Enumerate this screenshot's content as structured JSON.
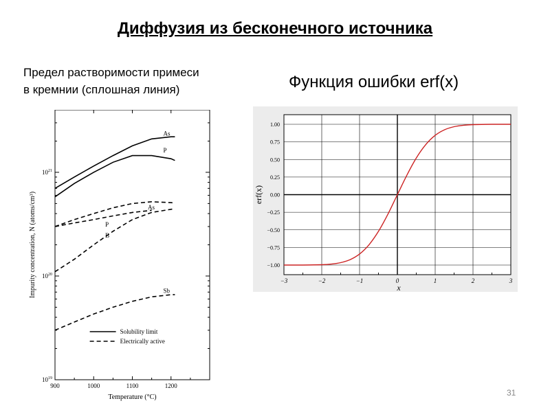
{
  "slide": {
    "title": "Диффузия из бесконечного источника",
    "left_caption_line1": "Предел растворимости примеси",
    "left_caption_line2": "в кремнии  (сплошная линия)",
    "right_caption": "Функция ошибки erf(x)",
    "page_number": "31"
  },
  "chart_data": [
    {
      "type": "line",
      "yscale": "log",
      "xlabel": "Temperature (°C)",
      "ylabel": "Impurity concentration, N (atoms/cm³)",
      "xlim": [
        900,
        1300
      ],
      "ylim": [
        1e+19,
        4e+21
      ],
      "x_ticks": [
        "900",
        "1000",
        "1100",
        "1200"
      ],
      "y_ticks": [
        {
          "base": "10",
          "exp": "19",
          "value": 1e+19
        },
        {
          "base": "10",
          "exp": "20",
          "value": 1e+20
        },
        {
          "base": "10",
          "exp": "21",
          "value": 1e+21
        }
      ],
      "legend": {
        "position": "bottom-right",
        "solid_label": "Solubility limit",
        "dashed_label": "Electrically active"
      },
      "series": [
        {
          "name": "As",
          "style": "solid",
          "label_at": [
            1180,
            2.25e+21
          ],
          "x": [
            900,
            950,
            1000,
            1050,
            1100,
            1150,
            1200,
            1210
          ],
          "y": [
            7e+20,
            9e+20,
            1.15e+21,
            1.45e+21,
            1.8e+21,
            2.1e+21,
            2.2e+21,
            2.2e+21
          ]
        },
        {
          "name": "P",
          "style": "solid",
          "label_at": [
            1180,
            1.55e+21
          ],
          "x": [
            900,
            950,
            1000,
            1050,
            1100,
            1150,
            1200,
            1210
          ],
          "y": [
            5.8e+20,
            7.8e+20,
            1e+21,
            1.25e+21,
            1.45e+21,
            1.45e+21,
            1.35e+21,
            1.3e+21
          ]
        },
        {
          "name": "As",
          "style": "dashed",
          "label_at": [
            1140,
            4.4e+20
          ],
          "x": [
            900,
            950,
            1000,
            1050,
            1100,
            1150,
            1200,
            1210
          ],
          "y": [
            3e+20,
            3.5e+20,
            4e+20,
            4.55e+20,
            5e+20,
            5.2e+20,
            5.1e+20,
            5.05e+20
          ]
        },
        {
          "name": "P",
          "style": "dashed",
          "label_at": [
            1030,
            3e+20
          ],
          "x": [
            900,
            950,
            1000,
            1050,
            1100,
            1150
          ],
          "y": [
            3e+20,
            3.25e+20,
            3.5e+20,
            3.8e+20,
            4.1e+20,
            4.3e+20
          ]
        },
        {
          "name": "B",
          "style": "dashed",
          "label_at": [
            1030,
            2.35e+20
          ],
          "x": [
            900,
            950,
            1000,
            1050,
            1100,
            1150,
            1200,
            1210
          ],
          "y": [
            1.1e+20,
            1.45e+20,
            2e+20,
            2.7e+20,
            3.5e+20,
            4.1e+20,
            4.4e+20,
            4.45e+20
          ]
        },
        {
          "name": "Sb",
          "style": "dashed",
          "label_at": [
            1180,
            6.9e+19
          ],
          "x": [
            900,
            950,
            1000,
            1050,
            1100,
            1150,
            1200,
            1210
          ],
          "y": [
            3e+19,
            3.6e+19,
            4.3e+19,
            5e+19,
            5.7e+19,
            6.3e+19,
            6.6e+19,
            6.6e+19
          ]
        }
      ]
    },
    {
      "type": "line",
      "xlabel": "x",
      "ylabel": "erf(x)",
      "xlim": [
        -3,
        3
      ],
      "ylim": [
        -1,
        1
      ],
      "grid": true,
      "x_ticks": [
        "−3",
        "−2",
        "−1",
        "0",
        "1",
        "2",
        "3"
      ],
      "y_ticks": [
        "1.00",
        "0.75",
        "0.50",
        "0.25",
        "0.00",
        "−0.25",
        "−0.50",
        "−0.75",
        "−1.00"
      ],
      "line_color": "#cc2222",
      "series": [
        {
          "x": [
            -3,
            -2.5,
            -2,
            -1.75,
            -1.5,
            -1.25,
            -1,
            -0.75,
            -0.5,
            -0.25,
            0,
            0.25,
            0.5,
            0.75,
            1,
            1.25,
            1.5,
            1.75,
            2,
            2.5,
            3
          ],
          "y": [
            -1.0,
            -0.9996,
            -0.9953,
            -0.9867,
            -0.9661,
            -0.9229,
            -0.8427,
            -0.7112,
            -0.5205,
            -0.2763,
            0.0,
            0.2763,
            0.5205,
            0.7112,
            0.8427,
            0.9229,
            0.9661,
            0.9867,
            0.9953,
            0.9996,
            1.0
          ]
        }
      ]
    }
  ]
}
